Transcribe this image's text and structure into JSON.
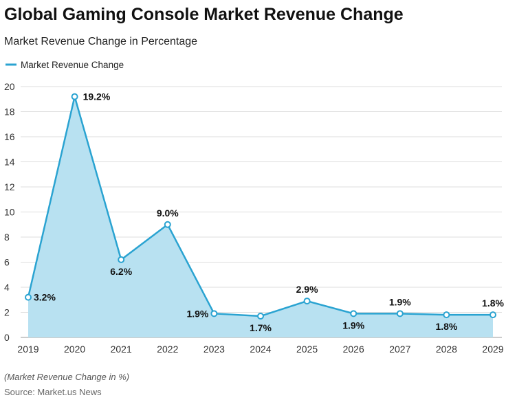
{
  "chart_data": {
    "type": "area",
    "title": "Global Gaming Console Market Revenue Change",
    "subtitle": "Market Revenue Change in Percentage",
    "categories": [
      "2019",
      "2020",
      "2021",
      "2022",
      "2023",
      "2024",
      "2025",
      "2026",
      "2027",
      "2028",
      "2029"
    ],
    "series": [
      {
        "name": "Market Revenue Change",
        "values": [
          3.2,
          19.2,
          6.2,
          9.0,
          1.9,
          1.7,
          2.9,
          1.9,
          1.9,
          1.8,
          1.8
        ],
        "labels": [
          "3.2%",
          "19.2%",
          "6.2%",
          "9.0%",
          "1.9%",
          "1.7%",
          "2.9%",
          "1.9%",
          "1.9%",
          "1.8%",
          "1.8%"
        ]
      }
    ],
    "ylim": [
      0,
      20
    ],
    "yticks": [
      0,
      2,
      4,
      6,
      8,
      10,
      12,
      14,
      16,
      18,
      20
    ],
    "grid": true,
    "legend_position": "top-left",
    "xlabel": "",
    "ylabel": "",
    "note": "(Market Revenue Change in %)",
    "source": "Source: Market.us News",
    "colors": {
      "line": "#2aa3d1",
      "fill": "#b8e1f1",
      "grid": "#dddddd"
    }
  }
}
